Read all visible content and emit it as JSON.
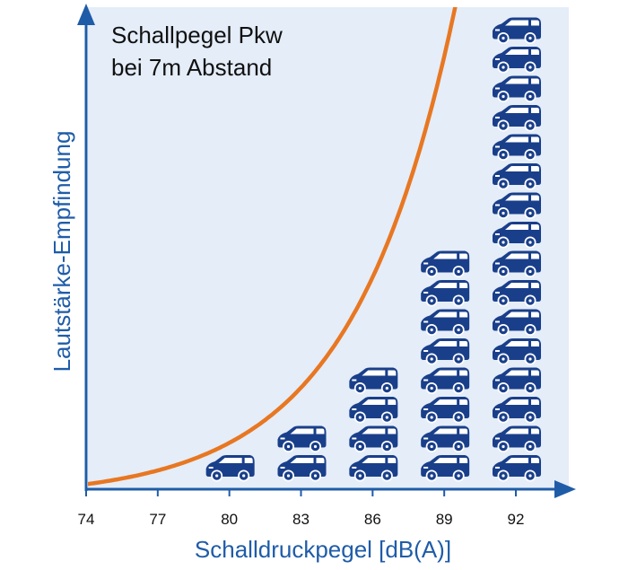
{
  "colors": {
    "axis": "#1f5ca8",
    "plot_background": "#e4edf8",
    "curve": "#e87722",
    "car_fill": "#1a3f8a",
    "car_window": "#ffffff",
    "text": "#111111"
  },
  "chart_data": {
    "type": "bar",
    "title": [
      "Schallpegel Pkw",
      "bei 7m Abstand"
    ],
    "xlabel": "Schalldruckpegel [dB(A)]",
    "ylabel": "Lautstärke-Empfindung",
    "x_ticks": [
      "74",
      "77",
      "80",
      "83",
      "86",
      "89",
      "92"
    ],
    "xlim": [
      74,
      94
    ],
    "categories": [
      "80",
      "83",
      "86",
      "89",
      "92"
    ],
    "values": [
      1,
      2,
      4,
      8,
      16
    ],
    "unit_icon": "car-icon",
    "curve": {
      "type": "exponential",
      "base": 2,
      "doubling_step_db": 3,
      "reference_db": 80,
      "reference_value": 1
    },
    "grid": false,
    "legend": "none"
  }
}
